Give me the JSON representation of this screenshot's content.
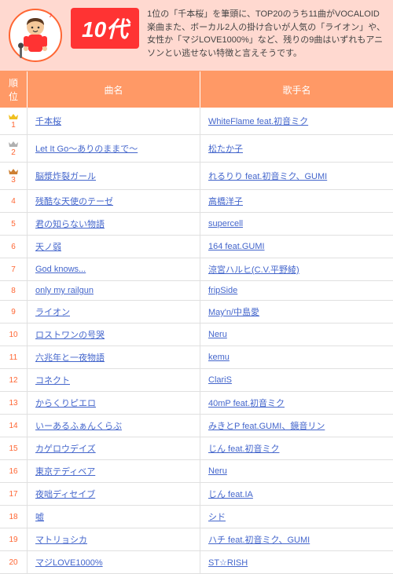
{
  "header": {
    "badge": "10代",
    "description": "1位の「千本桜」を筆頭に、TOP20のうち11曲がVOCALOID楽曲また、ボーカル2人の掛け合いが人気の「ライオン」や、女性か「マジLOVE1000%」など、残りの9曲はいずれもアニソンとい逃せない特徴と言えそうです。",
    "colors": {
      "header_bg": "#ffd9d0",
      "badge_bg": "#ff3333",
      "table_header_bg": "#ff9966",
      "link_color": "#4466cc",
      "rank_color": "#ff6633",
      "border_color": "#e0e0e0"
    }
  },
  "table": {
    "columns": {
      "rank": "順位",
      "song": "曲名",
      "artist": "歌手名"
    },
    "crown_colors": {
      "1": "#f0c020",
      "2": "#b0b0b0",
      "3": "#cd7f32"
    },
    "rows": [
      {
        "rank": "1",
        "crown": true,
        "song": "千本桜",
        "artist": "WhiteFlame feat.初音ミク"
      },
      {
        "rank": "2",
        "crown": true,
        "song": "Let It Go～ありのままで～",
        "artist": "松たか子"
      },
      {
        "rank": "3",
        "crown": true,
        "song": "脳漿炸裂ガール",
        "artist": "れるりり feat.初音ミク、GUMI"
      },
      {
        "rank": "4",
        "song": "残酷な天使のテーゼ",
        "artist": "高橋洋子"
      },
      {
        "rank": "5",
        "song": "君の知らない物語",
        "artist": "supercell"
      },
      {
        "rank": "6",
        "song": "天ノ弱",
        "artist": "164 feat.GUMI"
      },
      {
        "rank": "7",
        "song": "God knows...",
        "artist": "涼宮ハルヒ(C.V.平野綾)"
      },
      {
        "rank": "8",
        "song": "only my railgun",
        "artist": "fripSide"
      },
      {
        "rank": "9",
        "song": "ライオン",
        "artist": "May'n/中島愛"
      },
      {
        "rank": "10",
        "song": "ロストワンの号哭",
        "artist": "Neru"
      },
      {
        "rank": "11",
        "song": "六兆年と一夜物語",
        "artist": "kemu"
      },
      {
        "rank": "12",
        "song": "コネクト",
        "artist": "ClariS"
      },
      {
        "rank": "13",
        "song": "からくりピエロ",
        "artist": "40mP feat.初音ミク"
      },
      {
        "rank": "14",
        "song": "いーあるふぁんくらぶ",
        "artist": "みきとP feat.GUMI、鏡音リン"
      },
      {
        "rank": "15",
        "song": "カゲロウデイズ",
        "artist": "じん feat.初音ミク"
      },
      {
        "rank": "16",
        "song": "東京テディベア",
        "artist": "Neru"
      },
      {
        "rank": "17",
        "song": "夜咄ディセイブ",
        "artist": "じん feat.IA"
      },
      {
        "rank": "18",
        "song": "嘘",
        "artist": "シド"
      },
      {
        "rank": "19",
        "song": "マトリョシカ",
        "artist": "ハチ feat.初音ミク、GUMI"
      },
      {
        "rank": "20",
        "song": "マジLOVE1000%",
        "artist": "ST☆RISH"
      }
    ]
  }
}
